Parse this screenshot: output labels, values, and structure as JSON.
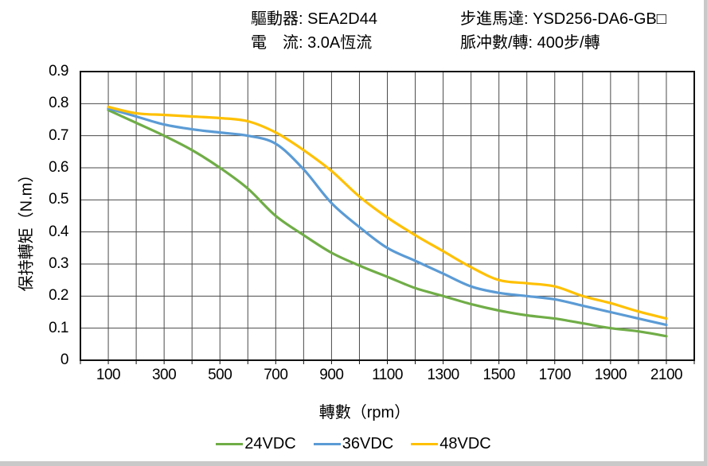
{
  "header": {
    "driver": "驅動器: SEA2D44",
    "current": "電　流: 3.0A恆流",
    "motor": "步進馬達: YSD256-DA6-GB□",
    "pulses": "脈冲數/轉: 400步/轉"
  },
  "chart_data": {
    "type": "line",
    "title": "",
    "xlabel": "轉數（rpm）",
    "ylabel": "保持轉矩（N.m）",
    "xlim": [
      0,
      2200
    ],
    "ylim": [
      0,
      0.9
    ],
    "x_ticks": [
      100,
      300,
      500,
      700,
      900,
      1100,
      1300,
      1500,
      1700,
      1900,
      2100
    ],
    "y_ticks": [
      "0.9",
      "0.8",
      "0.7",
      "0.6",
      "0.5",
      "0.4",
      "0.3",
      "0.2",
      "0.1",
      "0"
    ],
    "grid": {
      "on": true,
      "x_step": 100,
      "y_step": 0.1,
      "line_color": "#4a4a4a",
      "border_color": "#111111",
      "tick_length": 5
    },
    "legend_position": "bottom",
    "x": [
      100,
      200,
      300,
      400,
      500,
      600,
      700,
      800,
      900,
      1000,
      1100,
      1200,
      1300,
      1400,
      1500,
      1600,
      1700,
      1800,
      1900,
      2000,
      2100
    ],
    "series": [
      {
        "name": "24VDC",
        "color": "#70AD47",
        "values": [
          0.78,
          0.74,
          0.7,
          0.655,
          0.6,
          0.535,
          0.45,
          0.39,
          0.335,
          0.295,
          0.26,
          0.225,
          0.2,
          0.175,
          0.155,
          0.14,
          0.13,
          0.115,
          0.1,
          0.09,
          0.075
        ]
      },
      {
        "name": "36VDC",
        "color": "#5B9BD5",
        "values": [
          0.785,
          0.76,
          0.735,
          0.72,
          0.71,
          0.7,
          0.675,
          0.595,
          0.49,
          0.415,
          0.35,
          0.31,
          0.27,
          0.23,
          0.21,
          0.2,
          0.19,
          0.17,
          0.15,
          0.13,
          0.11
        ]
      },
      {
        "name": "48VDC",
        "color": "#FFC000",
        "values": [
          0.79,
          0.77,
          0.765,
          0.76,
          0.755,
          0.745,
          0.71,
          0.655,
          0.59,
          0.51,
          0.445,
          0.39,
          0.34,
          0.29,
          0.25,
          0.24,
          0.23,
          0.2,
          0.178,
          0.152,
          0.13
        ]
      }
    ]
  }
}
